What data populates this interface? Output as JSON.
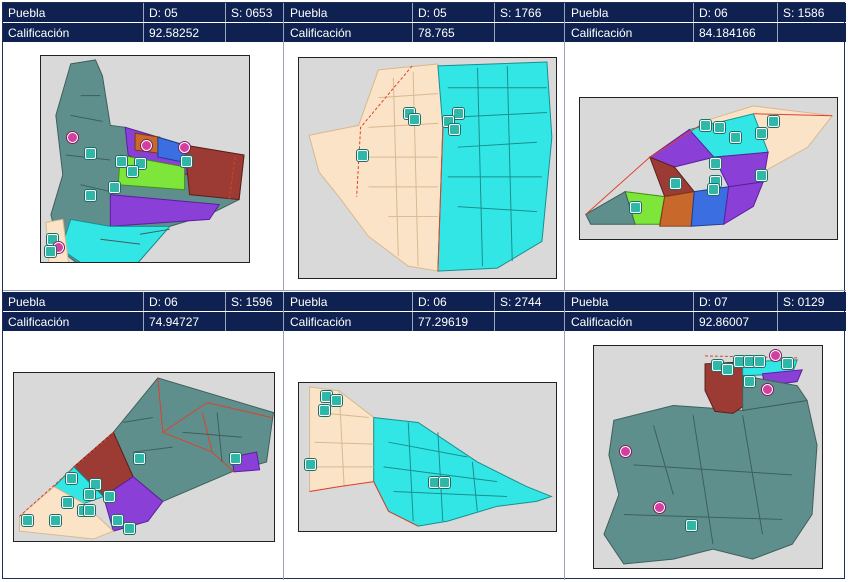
{
  "panels": [
    {
      "state": "Puebla",
      "district": "D: 05",
      "section": "S: 0653",
      "label": "Calificación",
      "score": "92.58252"
    },
    {
      "state": "Puebla",
      "district": "D: 05",
      "section": "S: 1766",
      "label": "Calificación",
      "score": "78.765"
    },
    {
      "state": "Puebla",
      "district": "D: 06",
      "section": "S: 1586",
      "label": "Calificación",
      "score": "84.184166"
    },
    {
      "state": "Puebla",
      "district": "D: 06",
      "section": "S: 1596",
      "label": "Calificación",
      "score": "74.94727"
    },
    {
      "state": "Puebla",
      "district": "D: 06",
      "section": "S: 2744",
      "label": "Calificación",
      "score": "77.29619"
    },
    {
      "state": "Puebla",
      "district": "D: 07",
      "section": "S: 0129",
      "label": "Calificación",
      "score": "92.86007"
    }
  ],
  "colors": {
    "header_bg": "#0f2150",
    "teal": "#5f8f8c",
    "cyan": "#33e6e6",
    "peach": "#fbe3c8",
    "purple": "#8a3fd6",
    "brown": "#9b3b33",
    "green": "#7ee63a",
    "orange": "#c8692b",
    "blue": "#3b6ee0",
    "boundary": "#e0402a"
  },
  "icons": [
    "school-marker-icon",
    "center-marker-icon"
  ]
}
